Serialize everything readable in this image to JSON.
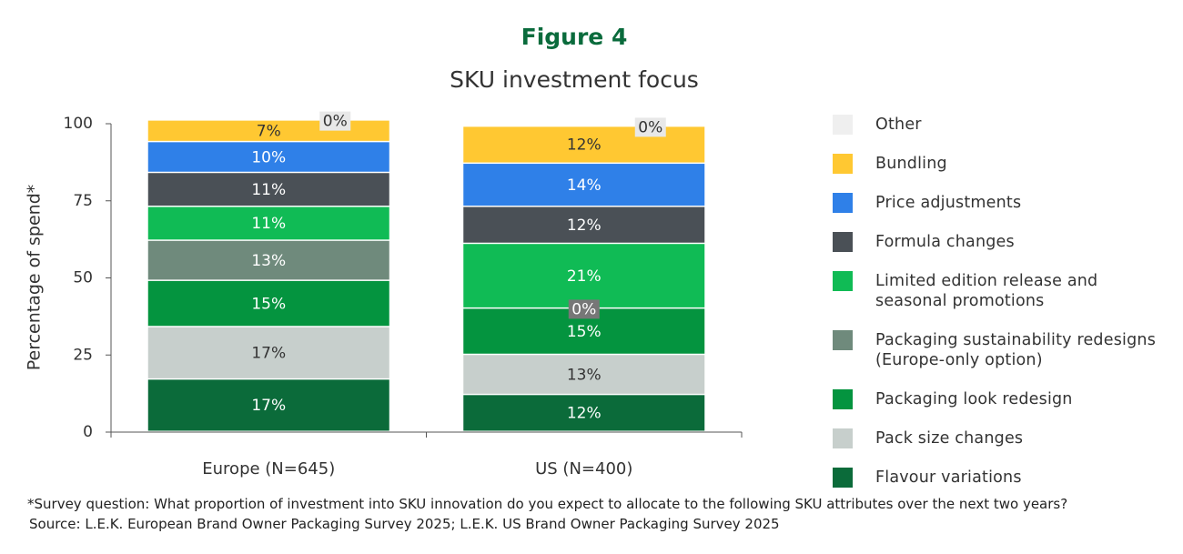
{
  "title": "Figure 4",
  "chart_data": {
    "type": "bar",
    "stacked": true,
    "title": "SKU investment focus",
    "ylabel": "Percentage of spend*",
    "categories": [
      "Europe (N=645)",
      "US (N=400)"
    ],
    "ylim": [
      0,
      100
    ],
    "yticks": [
      0,
      25,
      50,
      75,
      100
    ],
    "series": [
      {
        "name": "Flavour variations",
        "color": "#0b6b3a",
        "values": [
          17,
          12
        ],
        "value_labels": [
          "17%",
          "12%"
        ]
      },
      {
        "name": "Pack size changes",
        "color": "#c7cfcc",
        "values": [
          17,
          13
        ],
        "value_labels": [
          "17%",
          "13%"
        ]
      },
      {
        "name": "Packaging look redesign",
        "color": "#04943f",
        "values": [
          15,
          15
        ],
        "value_labels": [
          "15%",
          "15%"
        ]
      },
      {
        "name": "Packaging sustainability redesigns\n(Europe-only option)",
        "color": "#6f8a7c",
        "values": [
          13,
          0
        ],
        "value_labels": [
          "13%",
          "0%"
        ]
      },
      {
        "name": "Limited edition release and\nseasonal promotions",
        "color": "#10bb55",
        "values": [
          11,
          21
        ],
        "value_labels": [
          "11%",
          "21%"
        ]
      },
      {
        "name": "Formula changes",
        "color": "#4a5056",
        "values": [
          11,
          12
        ],
        "value_labels": [
          "11%",
          "12%"
        ]
      },
      {
        "name": "Price adjustments",
        "color": "#2f80e8",
        "values": [
          10,
          14
        ],
        "value_labels": [
          "10%",
          "14%"
        ]
      },
      {
        "name": "Bundling",
        "color": "#ffc832",
        "values": [
          7,
          12
        ],
        "value_labels": [
          "7%",
          "12%"
        ]
      },
      {
        "name": "Other",
        "color": "#efefef",
        "values": [
          0,
          0
        ],
        "value_labels": [
          "0%",
          "0%"
        ]
      }
    ]
  },
  "footnote": "*Survey question: What proportion of investment into SKU innovation do you expect to allocate to the following SKU attributes over the next two years?",
  "source": "Source: L.E.K. European Brand Owner Packaging Survey 2025; L.E.K. US Brand Owner Packaging Survey 2025"
}
